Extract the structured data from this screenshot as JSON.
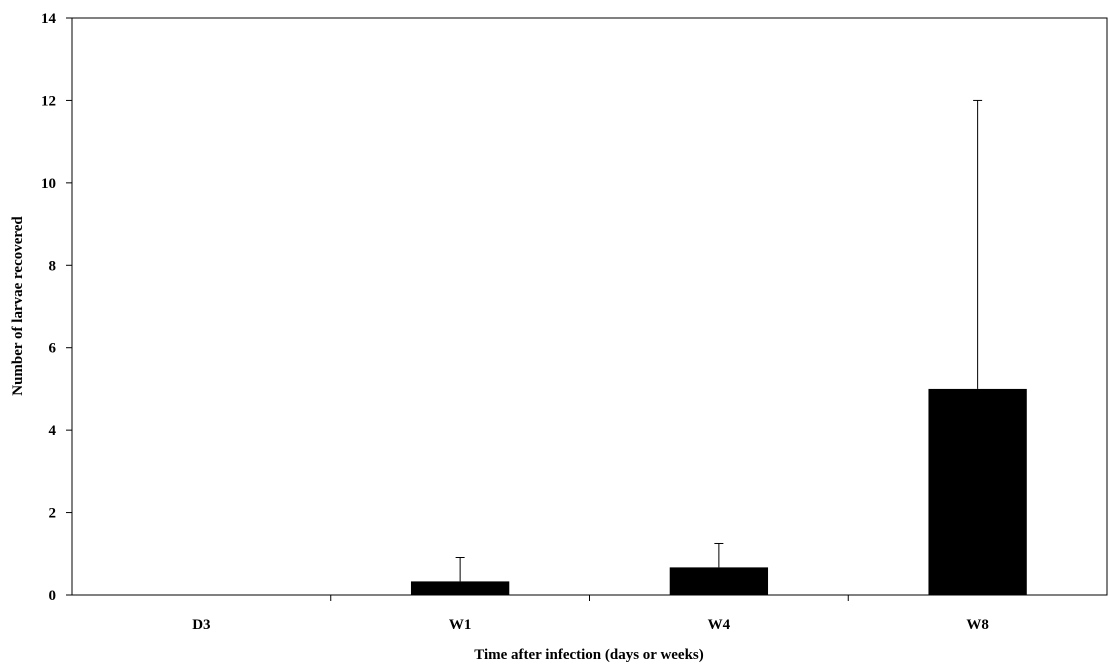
{
  "chart_data": {
    "type": "bar",
    "title": "",
    "xlabel": "Time after infection (days or weeks)",
    "ylabel": "Number of larvae recovered",
    "categories": [
      "D3",
      "W1",
      "W4",
      "W8"
    ],
    "values": [
      0,
      0.33,
      0.67,
      5
    ],
    "error_upper": [
      0,
      0.58,
      0.58,
      7
    ],
    "ylim": [
      0,
      14
    ],
    "yticks": [
      "0",
      "2",
      "4",
      "6",
      "8",
      "10",
      "12",
      "14"
    ],
    "grid": false,
    "legend": "none",
    "bar_color": "#000000"
  }
}
